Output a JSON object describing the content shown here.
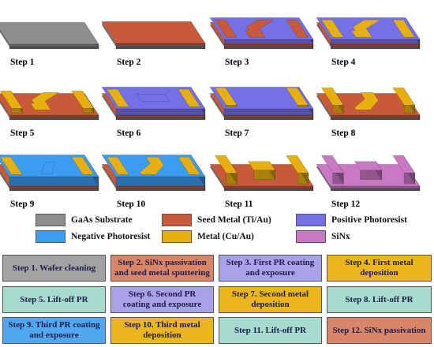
{
  "colors": {
    "gaas": "#8e8e8e",
    "seed": "#c85a3c",
    "positive_pr": "#7470e6",
    "negative_pr": "#3c9cf2",
    "metal": "#e8b00e",
    "sinx": "#c978c4",
    "box_gray": "#a3a3a3",
    "box_seed": "#d98568",
    "box_pos": "#a8a2e8",
    "box_neg": "#52a8f0",
    "box_metal": "#ebb51c",
    "box_teal": "#a6dccd"
  },
  "steps": [
    "Step 1",
    "Step 2",
    "Step 3",
    "Step 4",
    "Step 5",
    "Step 6",
    "Step 7",
    "Step 8",
    "Step 9",
    "Step 10",
    "Step 11",
    "Step 12"
  ],
  "legend": [
    {
      "label": "GaAs Substrate",
      "color": "gaas"
    },
    {
      "label": "Seed Metal (Ti/Au)",
      "color": "seed"
    },
    {
      "label": "Positive Photoresist",
      "color": "positive_pr"
    },
    {
      "label": "Negative Photoresist",
      "color": "negative_pr"
    },
    {
      "label": "Metal (Cu/Au)",
      "color": "metal"
    },
    {
      "label": "SiNx",
      "color": "sinx"
    }
  ],
  "process_boxes": [
    {
      "text": "Step 1. Wafer cleaning",
      "color": "box_gray"
    },
    {
      "text": "Step 2. SiNx passivation and seed metal sputtering",
      "color": "box_seed"
    },
    {
      "text": "Step 3. First PR coating and exposure",
      "color": "box_pos"
    },
    {
      "text": "Step 4. First metal deposition",
      "color": "box_metal"
    },
    {
      "text": "Step 5. Lift-off PR",
      "color": "box_teal"
    },
    {
      "text": "Step 6. Second PR coating and exposure",
      "color": "box_pos"
    },
    {
      "text": "Step 7. Second metal deposition",
      "color": "box_metal"
    },
    {
      "text": "Step 8. Lift-off PR",
      "color": "box_teal"
    },
    {
      "text": "Step 9. Third PR coating and exposure",
      "color": "box_neg"
    },
    {
      "text": "Step 10. Third metal deposition",
      "color": "box_metal"
    },
    {
      "text": "Step 11. Lift-off PR",
      "color": "box_teal"
    },
    {
      "text": "Step 12. SiNx passivation",
      "color": "box_seed"
    }
  ]
}
